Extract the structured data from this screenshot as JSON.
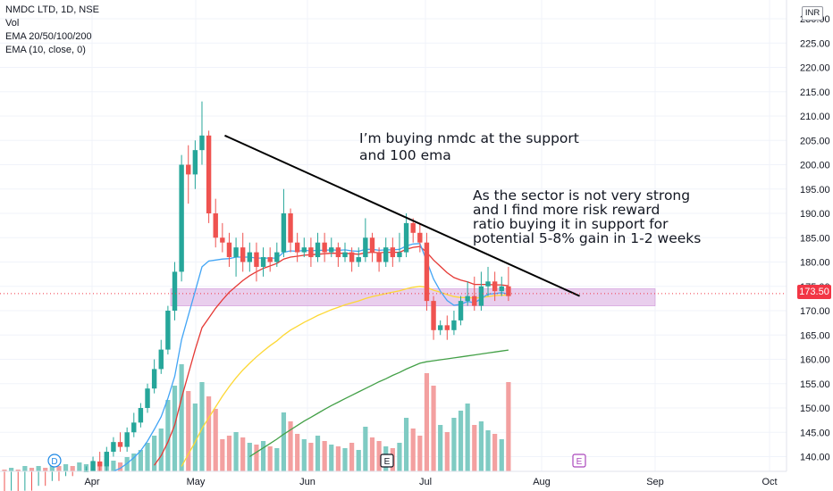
{
  "legend": {
    "symbol": "NMDC LTD, 1D, NSE",
    "vol": "Vol",
    "ema_multi": "EMA 20/50/100/200",
    "ema_single": "EMA (10, close, 0)"
  },
  "currency": "INR",
  "last_price_label": "173.50",
  "colors": {
    "up": "#26a69a",
    "down": "#ef5350",
    "vol_up": "#7fcbc3",
    "vol_down": "#f3a0a0",
    "ema10": "#42a5f5",
    "ema20": "#e53935",
    "ema50": "#fdd835",
    "ema100": "#43a047",
    "trendline": "#000000",
    "support_zone": "#e1bee7",
    "price_line": "#f23645"
  },
  "chart_data": {
    "type": "candlestick",
    "price_axis": {
      "ticks": [
        "140.00",
        "145.00",
        "150.00",
        "155.00",
        "160.00",
        "165.00",
        "170.00",
        "175.00",
        "180.00",
        "185.00",
        "190.00",
        "195.00",
        "200.00",
        "205.00",
        "210.00",
        "215.00",
        "220.00",
        "225.00",
        "230.00"
      ],
      "ylim": [
        138,
        232
      ]
    },
    "time_axis": [
      "Apr",
      "May",
      "Jun",
      "Jul",
      "Aug",
      "Sep",
      "Oct"
    ],
    "last_price": 173.5,
    "candles": [
      [
        130,
        129,
        132,
        128,
        1
      ],
      [
        129,
        131,
        133,
        128,
        2
      ],
      [
        131,
        130,
        132,
        129,
        1
      ],
      [
        130,
        132,
        133,
        129,
        3
      ],
      [
        132,
        131,
        133,
        130,
        2
      ],
      [
        131,
        133,
        134,
        130,
        3
      ],
      [
        133,
        132,
        134,
        131,
        2
      ],
      [
        132,
        134,
        135,
        131,
        4
      ],
      [
        134,
        133,
        135,
        132,
        3
      ],
      [
        133,
        135,
        136,
        132,
        4
      ],
      [
        135,
        134,
        136,
        133,
        3
      ],
      [
        134,
        136,
        137,
        133,
        5
      ],
      [
        136,
        137,
        138,
        135,
        4
      ],
      [
        137,
        139,
        140,
        136,
        6
      ],
      [
        139,
        138,
        141,
        137,
        5
      ],
      [
        138,
        141,
        142,
        137,
        7
      ],
      [
        141,
        143,
        144,
        140,
        6
      ],
      [
        143,
        142,
        145,
        141,
        5
      ],
      [
        142,
        145,
        146,
        141,
        8
      ],
      [
        145,
        147,
        149,
        144,
        10
      ],
      [
        147,
        150,
        151,
        146,
        12
      ],
      [
        150,
        154,
        155,
        149,
        16
      ],
      [
        154,
        158,
        160,
        153,
        20
      ],
      [
        158,
        162,
        164,
        157,
        24
      ],
      [
        162,
        170,
        171,
        161,
        40
      ],
      [
        170,
        178,
        180,
        168,
        48
      ],
      [
        178,
        200,
        202,
        176,
        60
      ],
      [
        200,
        198,
        204,
        192,
        45
      ],
      [
        198,
        203,
        205,
        195,
        38
      ],
      [
        203,
        206,
        213,
        200,
        50
      ],
      [
        206,
        190,
        207,
        188,
        42
      ],
      [
        190,
        185,
        193,
        183,
        35
      ],
      [
        185,
        184,
        188,
        182,
        18
      ],
      [
        184,
        181,
        186,
        179,
        20
      ],
      [
        181,
        183,
        185,
        177,
        22
      ],
      [
        183,
        180,
        186,
        178,
        19
      ],
      [
        180,
        182,
        184,
        178,
        16
      ],
      [
        182,
        179,
        184,
        176,
        15
      ],
      [
        179,
        181,
        183,
        177,
        17
      ],
      [
        181,
        180,
        183,
        178,
        14
      ],
      [
        180,
        182,
        184,
        179,
        13
      ],
      [
        182,
        190,
        195,
        181,
        33
      ],
      [
        190,
        184,
        191,
        182,
        28
      ],
      [
        184,
        182,
        186,
        180,
        21
      ],
      [
        182,
        183,
        185,
        181,
        18
      ],
      [
        183,
        181,
        185,
        179,
        16
      ],
      [
        181,
        184,
        186,
        180,
        20
      ],
      [
        184,
        182,
        186,
        180,
        17
      ],
      [
        182,
        183,
        185,
        181,
        15
      ],
      [
        183,
        181,
        184,
        179,
        14
      ],
      [
        181,
        182,
        184,
        180,
        13
      ],
      [
        182,
        180,
        183,
        178,
        16
      ],
      [
        180,
        181,
        183,
        179,
        12
      ],
      [
        181,
        185,
        189,
        180,
        25
      ],
      [
        185,
        182,
        186,
        180,
        19
      ],
      [
        182,
        180,
        183,
        178,
        17
      ],
      [
        180,
        183,
        185,
        179,
        14
      ],
      [
        183,
        181,
        185,
        179,
        13
      ],
      [
        181,
        182,
        186,
        180,
        16
      ],
      [
        182,
        188,
        190,
        181,
        30
      ],
      [
        188,
        186,
        189,
        184,
        24
      ],
      [
        186,
        184,
        188,
        182,
        20
      ],
      [
        184,
        172,
        186,
        170,
        55
      ],
      [
        172,
        166,
        173,
        164,
        48
      ],
      [
        166,
        167,
        168,
        165,
        26
      ],
      [
        167,
        166,
        169,
        164,
        22
      ],
      [
        166,
        168,
        170,
        165,
        30
      ],
      [
        168,
        172,
        173,
        167,
        34
      ],
      [
        172,
        173,
        176,
        171,
        38
      ],
      [
        173,
        171,
        177,
        170,
        26
      ],
      [
        171,
        175,
        178,
        170,
        28
      ],
      [
        175,
        176,
        179,
        173,
        23
      ],
      [
        176,
        174,
        178,
        172,
        21
      ],
      [
        174,
        175,
        177,
        173,
        18
      ],
      [
        175,
        173,
        179,
        172,
        50
      ]
    ],
    "ema10": [
      132,
      131.8,
      131.6,
      131.6,
      131.5,
      131.7,
      131.7,
      132,
      132.2,
      132.6,
      133,
      133.5,
      134,
      134.8,
      135.2,
      136,
      137,
      137.6,
      138.6,
      139.8,
      141.2,
      143.2,
      145.6,
      148.2,
      152,
      156.5,
      164,
      169,
      174,
      179,
      180.2,
      180.4,
      180.6,
      180.7,
      181,
      181,
      181,
      180.8,
      180.8,
      180.8,
      180.8,
      182,
      182.3,
      182.2,
      182.4,
      182.3,
      182.4,
      182.4,
      182.5,
      182.4,
      182.5,
      182.3,
      182.2,
      182.6,
      182.6,
      182.4,
      182.5,
      182.5,
      182.6,
      183.3,
      183.7,
      183.8,
      180.2,
      176.5,
      174,
      172.1,
      171.1,
      171.3,
      171.9,
      171.6,
      172.5,
      173.4,
      173.5,
      173.7,
      173.4
    ],
    "ema20": [
      126,
      126,
      126.2,
      126.4,
      126.6,
      126.8,
      127,
      127.3,
      127.6,
      127.9,
      128.3,
      128.7,
      129.1,
      129.6,
      130,
      130.6,
      131.3,
      131.9,
      132.8,
      133.8,
      135,
      136.5,
      138.2,
      140.2,
      143,
      146.5,
      152,
      157,
      162,
      166.5,
      168.5,
      170.5,
      172.2,
      173.8,
      175,
      176.2,
      177.2,
      178,
      178.7,
      179.2,
      179.7,
      180.6,
      181,
      181.2,
      181.4,
      181.5,
      181.6,
      181.7,
      181.8,
      181.8,
      181.8,
      181.7,
      181.6,
      181.9,
      182,
      181.9,
      182,
      182,
      182,
      182.6,
      183,
      183.2,
      182,
      180.4,
      179.1,
      177.8,
      176.8,
      176.3,
      175.9,
      175.4,
      175.4,
      175.4,
      175.3,
      175.3,
      175.1
    ],
    "ema50": [
      null,
      null,
      null,
      null,
      null,
      null,
      null,
      null,
      null,
      null,
      null,
      null,
      null,
      null,
      null,
      null,
      null,
      null,
      null,
      null,
      null,
      null,
      null,
      null,
      null,
      null,
      138,
      140.5,
      143,
      145.8,
      148,
      150.2,
      152.4,
      154.4,
      156.2,
      157.8,
      159.2,
      160.5,
      161.7,
      162.8,
      163.8,
      165,
      166,
      166.8,
      167.6,
      168.3,
      169,
      169.6,
      170.2,
      170.7,
      171.2,
      171.6,
      172,
      172.5,
      172.9,
      173.2,
      173.5,
      173.8,
      174.1,
      174.5,
      174.8,
      175,
      174.8,
      174.2,
      173.8,
      173.3,
      172.9,
      172.7,
      172.7,
      172.6,
      172.7,
      172.9,
      173.1,
      173.2,
      173.2
    ],
    "ema100": [
      null,
      null,
      null,
      null,
      null,
      null,
      null,
      null,
      null,
      null,
      null,
      null,
      null,
      null,
      null,
      null,
      null,
      null,
      null,
      null,
      null,
      null,
      null,
      null,
      null,
      null,
      null,
      null,
      null,
      null,
      null,
      null,
      null,
      null,
      null,
      null,
      140,
      140.9,
      141.8,
      142.7,
      143.6,
      144.6,
      145.5,
      146.4,
      147.3,
      148.1,
      148.9,
      149.7,
      150.5,
      151.2,
      151.9,
      152.6,
      153.3,
      154,
      154.7,
      155.4,
      156,
      156.7,
      157.3,
      158,
      158.6,
      159.2,
      159.5,
      159.7,
      159.9,
      160.1,
      160.3,
      160.5,
      160.7,
      160.9,
      161.1,
      161.3,
      161.5,
      161.7,
      161.9
    ]
  },
  "annotations": {
    "note1": [
      "I’m buying nmdc at the support",
      "and 100 ema"
    ],
    "note2": [
      "As the sector is not very strong",
      "and I find more risk reward",
      "ratio buying it in support for",
      "potential 5-8% gain in 1-2 weeks"
    ]
  },
  "markers": [
    {
      "letter": "D",
      "kind": "dividend"
    },
    {
      "letter": "E",
      "kind": "earnings"
    },
    {
      "letter": "E",
      "kind": "earnings-upcoming"
    }
  ],
  "trendline": {
    "from": [
      33,
      206
    ],
    "to": [
      88,
      173
    ]
  },
  "support_zone": {
    "low": 171,
    "high": 174.5
  }
}
